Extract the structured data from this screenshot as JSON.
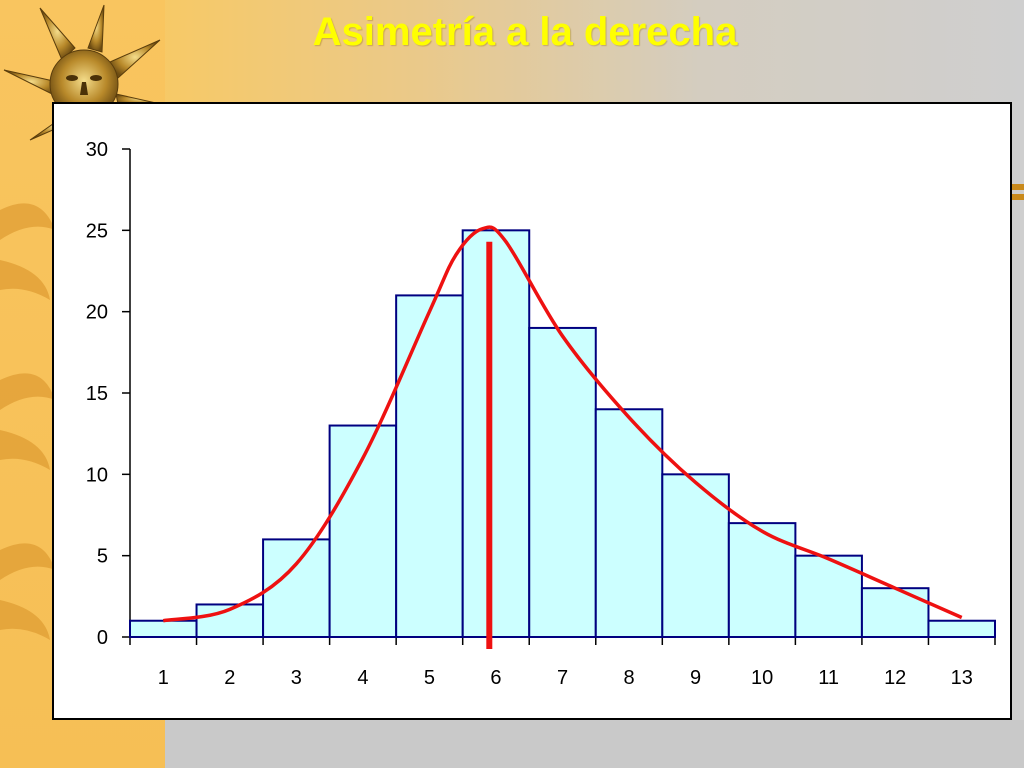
{
  "slide": {
    "title": "Asimetría a la derecha",
    "title_color": "#ffff00"
  },
  "decorations": {
    "logo_icon": "sun-face-icon",
    "side_icon": "sun-rays-icon"
  },
  "chart_data": {
    "type": "bar",
    "categories": [
      "1",
      "2",
      "3",
      "4",
      "5",
      "6",
      "7",
      "8",
      "9",
      "10",
      "11",
      "12",
      "13"
    ],
    "values": [
      1,
      2,
      6,
      13,
      21,
      25,
      19,
      14,
      10,
      7,
      5,
      3,
      1
    ],
    "y_ticks": [
      "0",
      "5",
      "10",
      "15",
      "20",
      "25",
      "30"
    ],
    "ylim": [
      0,
      30
    ],
    "title": "",
    "xlabel": "",
    "ylabel": "",
    "bar_fill": "#ccffff",
    "bar_stroke": "#000080",
    "curve_color": "#ee1111",
    "curve": {
      "type": "line",
      "x": [
        1,
        2,
        3,
        4,
        5,
        5.4,
        5.8,
        6.15,
        7,
        8,
        9,
        10,
        11,
        12,
        13
      ],
      "y": [
        1,
        1.7,
        4.5,
        11,
        20,
        23.5,
        25.1,
        24.3,
        18.5,
        13.5,
        9.5,
        6.5,
        4.8,
        3,
        1.2
      ]
    },
    "marker_line": {
      "x": 5.9,
      "y": [
        24.3,
        0
      ]
    },
    "grid": false,
    "legend": "none"
  }
}
